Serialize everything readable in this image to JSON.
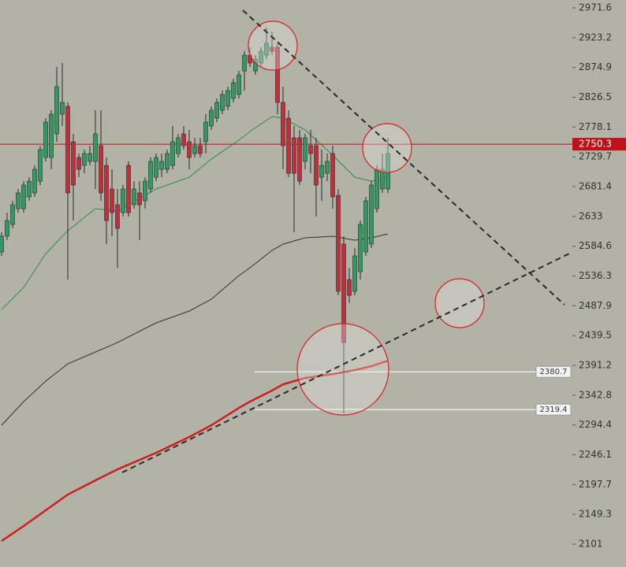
{
  "chart_data": {
    "type": "candlestick",
    "up_color": "#2f9a62",
    "down_color": "#c0303c",
    "candles": [
      [
        2575.3,
        2607.2,
        2568.9,
        2600.9
      ],
      [
        2600.9,
        2639.2,
        2594.5,
        2626.4
      ],
      [
        2620.0,
        2658.4,
        2613.6,
        2652.0
      ],
      [
        2645.6,
        2677.6,
        2639.2,
        2671.2
      ],
      [
        2645.6,
        2690.3,
        2639.2,
        2684.0
      ],
      [
        2664.8,
        2696.7,
        2658.4,
        2690.3
      ],
      [
        2671.2,
        2715.9,
        2664.8,
        2709.5
      ],
      [
        2690.3,
        2747.9,
        2684.0,
        2741.5
      ],
      [
        2728.7,
        2792.6,
        2722.3,
        2786.2
      ],
      [
        2728.7,
        2805.4,
        2709.5,
        2799.0
      ],
      [
        2767.1,
        2875.7,
        2754.3,
        2843.8
      ],
      [
        2799.0,
        2882.1,
        2779.8,
        2818.2
      ],
      [
        2811.8,
        2818.2,
        2530.5,
        2671.2
      ],
      [
        2754.3,
        2767.1,
        2626.4,
        2684.0
      ],
      [
        2728.7,
        2735.1,
        2696.7,
        2709.5
      ],
      [
        2715.9,
        2741.5,
        2703.1,
        2735.1
      ],
      [
        2722.3,
        2747.9,
        2715.9,
        2735.1
      ],
      [
        2722.3,
        2805.4,
        2677.6,
        2767.1
      ],
      [
        2747.9,
        2805.4,
        2658.4,
        2671.2
      ],
      [
        2715.9,
        2728.7,
        2588.1,
        2626.4
      ],
      [
        2677.6,
        2709.5,
        2600.9,
        2639.2
      ],
      [
        2652.0,
        2677.6,
        2549.7,
        2613.6
      ],
      [
        2639.2,
        2684.0,
        2632.8,
        2677.6
      ],
      [
        2715.9,
        2722.3,
        2632.8,
        2639.2
      ],
      [
        2652.0,
        2690.3,
        2645.6,
        2677.6
      ],
      [
        2671.2,
        2690.3,
        2594.5,
        2652.0
      ],
      [
        2658.4,
        2696.7,
        2645.6,
        2690.3
      ],
      [
        2677.6,
        2728.7,
        2671.2,
        2722.3
      ],
      [
        2696.7,
        2735.1,
        2690.3,
        2728.7
      ],
      [
        2709.5,
        2735.1,
        2696.7,
        2722.3
      ],
      [
        2709.5,
        2741.5,
        2703.1,
        2735.1
      ],
      [
        2715.9,
        2779.8,
        2709.5,
        2754.3
      ],
      [
        2735.1,
        2767.1,
        2728.7,
        2760.7
      ],
      [
        2767.1,
        2779.8,
        2741.5,
        2747.9
      ],
      [
        2754.3,
        2773.5,
        2709.5,
        2728.7
      ],
      [
        2735.1,
        2760.7,
        2728.7,
        2747.9
      ],
      [
        2747.9,
        2760.7,
        2728.7,
        2735.1
      ],
      [
        2754.3,
        2799.0,
        2735.1,
        2786.2
      ],
      [
        2779.8,
        2811.8,
        2773.5,
        2805.4
      ],
      [
        2792.6,
        2824.6,
        2786.2,
        2818.2
      ],
      [
        2805.4,
        2837.4,
        2799.0,
        2831.0
      ],
      [
        2811.8,
        2843.8,
        2805.4,
        2837.4
      ],
      [
        2824.6,
        2856.6,
        2818.2,
        2850.2
      ],
      [
        2831.0,
        2869.3,
        2824.6,
        2863.0
      ],
      [
        2869.3,
        2901.3,
        2837.4,
        2894.9
      ],
      [
        2894.9,
        2907.7,
        2875.7,
        2882.1
      ],
      [
        2869.3,
        2894.9,
        2863.0,
        2888.5
      ],
      [
        2882.1,
        2907.7,
        2875.7,
        2901.3
      ],
      [
        2894.9,
        2939.7,
        2888.5,
        2914.1
      ],
      [
        2907.7,
        2933.3,
        2894.9,
        2901.3
      ],
      [
        2907.7,
        2914.1,
        2799.0,
        2818.2
      ],
      [
        2818.2,
        2843.8,
        2709.5,
        2747.9
      ],
      [
        2792.6,
        2805.4,
        2696.7,
        2703.1
      ],
      [
        2760.7,
        2779.8,
        2607.2,
        2703.1
      ],
      [
        2760.7,
        2773.5,
        2684.0,
        2690.3
      ],
      [
        2722.3,
        2767.1,
        2709.5,
        2760.7
      ],
      [
        2747.9,
        2773.5,
        2703.1,
        2735.1
      ],
      [
        2747.9,
        2760.7,
        2632.8,
        2684.0
      ],
      [
        2696.7,
        2741.5,
        2658.4,
        2715.9
      ],
      [
        2703.1,
        2735.1,
        2690.3,
        2722.3
      ],
      [
        2735.1,
        2747.9,
        2645.6,
        2664.8
      ],
      [
        2667.3,
        2677.6,
        2505.0,
        2511.4
      ],
      [
        2588.1,
        2600.9,
        2313.2,
        2428.3
      ],
      [
        2530.5,
        2549.7,
        2492.6,
        2505.0
      ],
      [
        2511.4,
        2581.7,
        2505.0,
        2568.9
      ],
      [
        2543.3,
        2626.4,
        2530.5,
        2620.0
      ],
      [
        2575.3,
        2664.8,
        2568.9,
        2658.4
      ],
      [
        2588.1,
        2690.3,
        2581.7,
        2684.0
      ],
      [
        2645.6,
        2715.9,
        2639.2,
        2709.5
      ],
      [
        2677.6,
        2735.1,
        2671.2,
        2709.5
      ],
      [
        2677.6,
        2760.7,
        2671.2,
        2735.1
      ]
    ],
    "series": [
      {
        "color": "#2e8b4a",
        "width": 1,
        "x": [
          0,
          4,
          8,
          12,
          17,
          21,
          28,
          34,
          38,
          43,
          45,
          49,
          51,
          55,
          60,
          64,
          67,
          70
        ],
        "values": [
          2481.9,
          2517.8,
          2572.7,
          2609.8,
          2645.6,
          2641.8,
          2677.6,
          2696.7,
          2726.1,
          2756.8,
          2770.9,
          2795.2,
          2792.6,
          2773.5,
          2732.5,
          2696.7,
          2690.3,
          2696.7
        ]
      },
      {
        "color": "#333333",
        "width": 1,
        "x": [
          0,
          4,
          8,
          12,
          17,
          21,
          28,
          34,
          38,
          43,
          45,
          49,
          51,
          55,
          60,
          64,
          67,
          70
        ],
        "values": [
          2294.0,
          2332.4,
          2365.6,
          2393.7,
          2412.9,
          2428.3,
          2460.2,
          2479.4,
          2498.6,
          2536.9,
          2549.7,
          2577.8,
          2588.1,
          2598.3,
          2600.9,
          2594.5,
          2598.3,
          2604.7
        ]
      },
      {
        "color": "#cc1f1f",
        "width": 2.5,
        "x": [
          0,
          4,
          8,
          12,
          17,
          21,
          28,
          34,
          38,
          43,
          45,
          49,
          51,
          55,
          60,
          64,
          67,
          70
        ],
        "values": [
          2106.1,
          2130.4,
          2155.9,
          2181.5,
          2204.5,
          2222.4,
          2249.3,
          2274.8,
          2294.0,
          2322.1,
          2332.4,
          2350.3,
          2360.5,
          2370.7,
          2377.1,
          2383.5,
          2389.9,
          2398.8
        ]
      }
    ],
    "price_line": {
      "value": 2750.3,
      "color": "#c0101a"
    },
    "levels": [
      2380.7,
      2319.4
    ],
    "ylim": [
      2063.9,
      2984.4
    ],
    "yticks": [
      2971.6,
      2923.2,
      2874.9,
      2826.5,
      2778.1,
      2729.7,
      2681.4,
      2633.0,
      2584.6,
      2536.3,
      2487.9,
      2439.5,
      2391.2,
      2342.8,
      2294.4,
      2246.1,
      2197.7,
      2149.3,
      2101.0
    ]
  }
}
